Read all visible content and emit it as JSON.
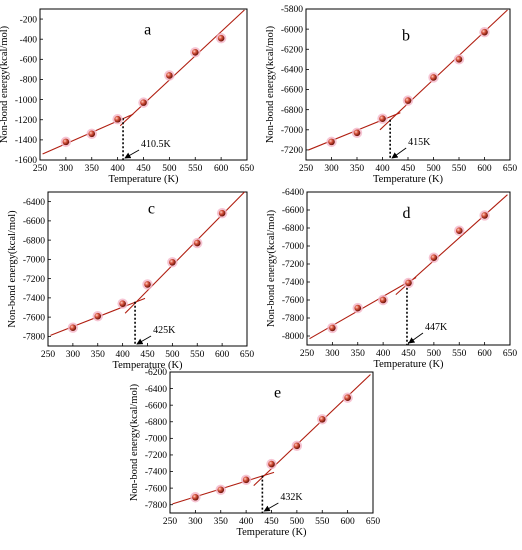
{
  "chart_data": [
    {
      "type": "scatter",
      "panel_label": "a",
      "xlabel": "Temperature (K)",
      "ylabel": "Non-bond energy(kcal/mol)",
      "xlim": [
        250,
        650
      ],
      "ylim": [
        -1600,
        -100
      ],
      "xticks": [
        250,
        300,
        350,
        400,
        450,
        500,
        550,
        600,
        650
      ],
      "yticks": [
        -1600,
        -1400,
        -1200,
        -1000,
        -800,
        -600,
        -400,
        -200
      ],
      "x": [
        300,
        350,
        400,
        450,
        500,
        550,
        600
      ],
      "y": [
        -1420,
        -1340,
        -1195,
        -1030,
        -760,
        -530,
        -390
      ],
      "fit_low": {
        "x": [
          255,
          430
        ],
        "y": [
          -1540,
          -1145
        ]
      },
      "fit_high": {
        "x": [
          405,
          645
        ],
        "y": [
          -1260,
          -110
        ]
      },
      "transition": {
        "x": 410.5,
        "y": -1185,
        "label": "410.5K"
      }
    },
    {
      "type": "scatter",
      "panel_label": "b",
      "xlabel": "Temperature (K)",
      "ylabel": "Non-bond energy(kcal/mol)",
      "xlim": [
        250,
        650
      ],
      "ylim": [
        -7300,
        -5800
      ],
      "xticks": [
        250,
        300,
        350,
        400,
        450,
        500,
        550,
        600,
        650
      ],
      "yticks": [
        -7200,
        -7000,
        -6800,
        -6600,
        -6400,
        -6200,
        -6000,
        -5800
      ],
      "x": [
        300,
        350,
        400,
        450,
        500,
        550,
        600
      ],
      "y": [
        -7120,
        -7030,
        -6890,
        -6710,
        -6480,
        -6300,
        -6030
      ],
      "fit_low": {
        "x": [
          255,
          435
        ],
        "y": [
          -7200,
          -6830
        ]
      },
      "fit_high": {
        "x": [
          395,
          645
        ],
        "y": [
          -7000,
          -5810
        ]
      },
      "transition": {
        "x": 415,
        "y": -6900,
        "label": "415K"
      }
    },
    {
      "type": "scatter",
      "panel_label": "c",
      "xlabel": "Temperature (K)",
      "ylabel": "Non-bond energy(kcal/mol)",
      "xlim": [
        250,
        650
      ],
      "ylim": [
        -7900,
        -6300
      ],
      "xticks": [
        250,
        300,
        350,
        400,
        450,
        500,
        550,
        600,
        650
      ],
      "yticks": [
        -7800,
        -7600,
        -7400,
        -7200,
        -7000,
        -6800,
        -6600,
        -6400
      ],
      "x": [
        300,
        350,
        400,
        450,
        500,
        550,
        600
      ],
      "y": [
        -7710,
        -7590,
        -7460,
        -7260,
        -7030,
        -6830,
        -6520
      ],
      "fit_low": {
        "x": [
          255,
          445
        ],
        "y": [
          -7790,
          -7405
        ]
      },
      "fit_high": {
        "x": [
          405,
          645
        ],
        "y": [
          -7560,
          -6300
        ]
      },
      "transition": {
        "x": 425,
        "y": -7440,
        "label": "425K"
      }
    },
    {
      "type": "scatter",
      "panel_label": "d",
      "xlabel": "Temperature (K)",
      "ylabel": "Non-bond energy(kcal/mol)",
      "xlim": [
        250,
        650
      ],
      "ylim": [
        -8100,
        -6400
      ],
      "xticks": [
        250,
        300,
        350,
        400,
        450,
        500,
        550,
        600,
        650
      ],
      "yticks": [
        -8000,
        -7800,
        -7600,
        -7400,
        -7200,
        -7000,
        -6800,
        -6600,
        -6400
      ],
      "x": [
        300,
        350,
        400,
        450,
        500,
        550,
        600
      ],
      "y": [
        -7910,
        -7690,
        -7600,
        -7410,
        -7130,
        -6830,
        -6660
      ],
      "fit_low": {
        "x": [
          255,
          465
        ],
        "y": [
          -8030,
          -7350
        ]
      },
      "fit_high": {
        "x": [
          425,
          645
        ],
        "y": [
          -7540,
          -6430
        ]
      },
      "transition": {
        "x": 447,
        "y": -7420,
        "label": "447K"
      }
    },
    {
      "type": "scatter",
      "panel_label": "e",
      "xlabel": "Temperature (K)",
      "ylabel": "Non-bond energy(kcal/mol)",
      "xlim": [
        250,
        650
      ],
      "ylim": [
        -7900,
        -6200
      ],
      "xticks": [
        250,
        300,
        350,
        400,
        450,
        500,
        550,
        600,
        650
      ],
      "yticks": [
        -7800,
        -7600,
        -7400,
        -7200,
        -7000,
        -6800,
        -6600,
        -6400,
        -6200
      ],
      "x": [
        300,
        350,
        400,
        450,
        500,
        550,
        600
      ],
      "y": [
        -7710,
        -7620,
        -7500,
        -7310,
        -7090,
        -6770,
        -6510
      ],
      "fit_low": {
        "x": [
          255,
          455
        ],
        "y": [
          -7790,
          -7410
        ]
      },
      "fit_high": {
        "x": [
          415,
          645
        ],
        "y": [
          -7570,
          -6230
        ]
      },
      "transition": {
        "x": 432,
        "y": -7450,
        "label": "432K"
      }
    }
  ]
}
